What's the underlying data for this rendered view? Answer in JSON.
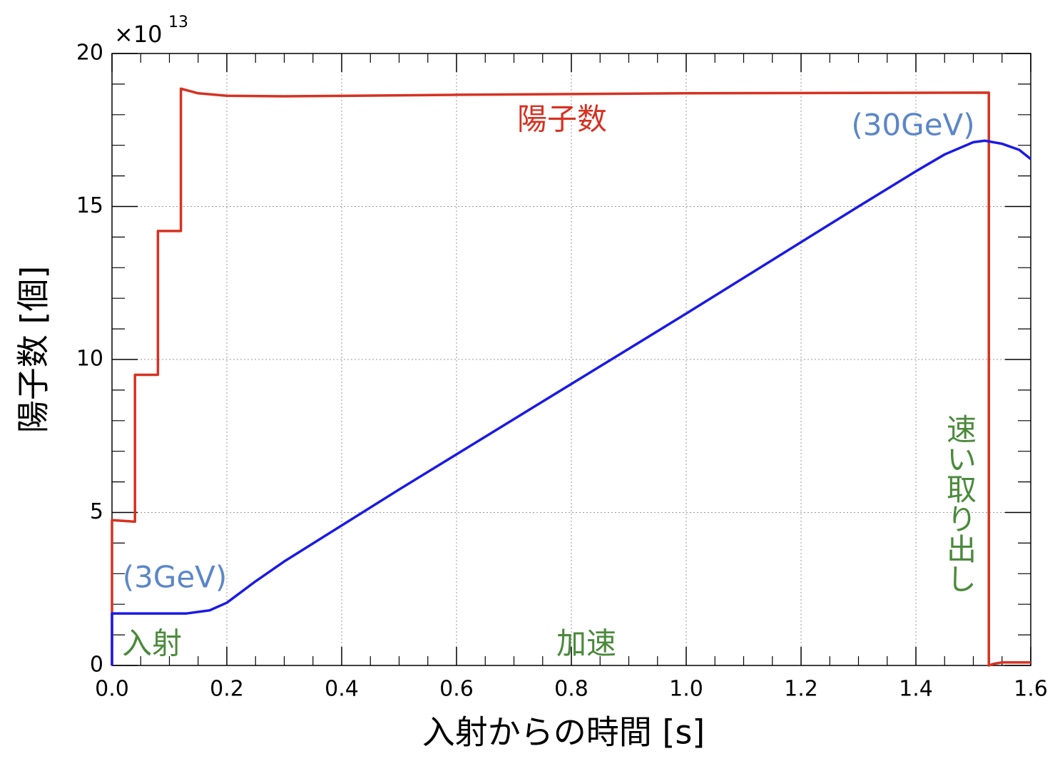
{
  "chart_data": {
    "type": "line",
    "y_label": "陽子数 [個]",
    "x_label": "入射からの時間 [s]",
    "y_scale_label": {
      "base": "×10",
      "exponent": "13"
    },
    "xlim": [
      0,
      1.6
    ],
    "ylim": [
      0,
      20
    ],
    "xticks": [
      {
        "value": 0,
        "label": "0.0"
      },
      0.2,
      0.4,
      0.6,
      0.8,
      {
        "value": 1,
        "label": "1.0"
      },
      1.2,
      1.4,
      1.6
    ],
    "yticks": [
      0,
      5,
      10,
      15,
      20
    ],
    "grid": true,
    "series": [
      {
        "color": "#d63222",
        "x": [
          0,
          0,
          0.04,
          0.04,
          0.08,
          0.08,
          0.12,
          0.12,
          0.15,
          0.2,
          0.3,
          0.6,
          1.0,
          1.527,
          1.527,
          1.535,
          1.55,
          1.6
        ],
        "values": [
          0,
          4.75,
          4.7,
          9.5,
          9.5,
          14.2,
          14.2,
          18.85,
          18.7,
          18.62,
          18.6,
          18.65,
          18.7,
          18.72,
          0,
          0.05,
          0.1,
          0.1
        ]
      },
      {
        "color": "#1a1ae6",
        "x": [
          0,
          0,
          0.13,
          0.17,
          0.2,
          0.25,
          0.3,
          0.5,
          1.0,
          1.3,
          1.4,
          1.45,
          1.5,
          1.52,
          1.55,
          1.58,
          1.6
        ],
        "values": [
          0,
          1.7,
          1.7,
          1.8,
          2.05,
          2.75,
          3.4,
          5.75,
          11.5,
          15.0,
          16.15,
          16.7,
          17.1,
          17.15,
          17.05,
          16.85,
          16.55
        ]
      }
    ],
    "annotations": [
      {
        "text": "陽子数",
        "color": "#d63222"
      },
      {
        "text": "(3GeV)",
        "color": "#5b87c8"
      },
      {
        "text": "(30GeV)",
        "color": "#5b87c8"
      },
      {
        "text": "入射",
        "color": "#4b8a3c"
      },
      {
        "text": "加速",
        "color": "#4b8a3c"
      },
      {
        "text": "速い取り出し",
        "color": "#4b8a3c"
      }
    ]
  }
}
